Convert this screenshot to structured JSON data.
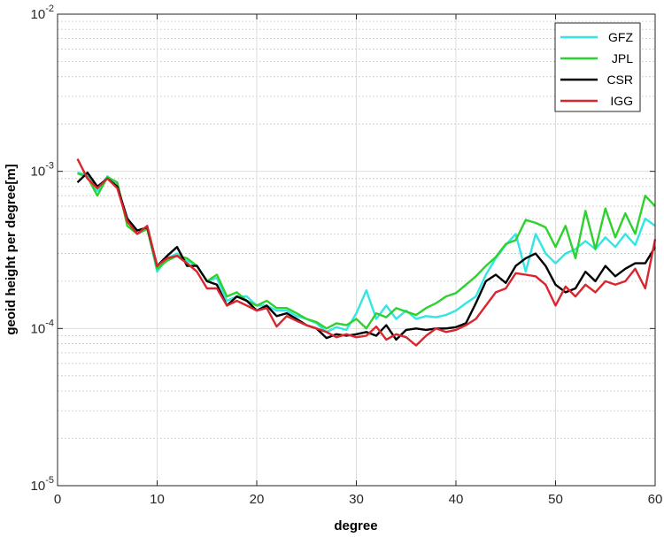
{
  "chart_data": {
    "type": "line",
    "title": "",
    "xlabel": "degree",
    "ylabel": "geoid height per degree[m]",
    "xlim": [
      0,
      60
    ],
    "ylim": [
      1e-05,
      0.01
    ],
    "yscale": "log",
    "grid": true,
    "minor_grid": true,
    "legend_position": "top-right",
    "x_ticks": [
      0,
      10,
      20,
      30,
      40,
      50,
      60
    ],
    "x_tick_labels": [
      "0",
      "10",
      "20",
      "30",
      "40",
      "50",
      "60"
    ],
    "y_ticks": [
      1e-05,
      0.0001,
      0.001,
      0.01
    ],
    "y_tick_labels": [
      {
        "base": "10",
        "exp": "-5"
      },
      {
        "base": "10",
        "exp": "-4"
      },
      {
        "base": "10",
        "exp": "-3"
      },
      {
        "base": "10",
        "exp": "-2"
      }
    ],
    "x": [
      2,
      3,
      4,
      5,
      6,
      7,
      8,
      9,
      10,
      11,
      12,
      13,
      14,
      15,
      16,
      17,
      18,
      19,
      20,
      21,
      22,
      23,
      24,
      25,
      26,
      27,
      28,
      29,
      30,
      31,
      32,
      33,
      34,
      35,
      36,
      37,
      38,
      39,
      40,
      41,
      42,
      43,
      44,
      45,
      46,
      47,
      48,
      49,
      50,
      51,
      52,
      53,
      54,
      55,
      56,
      57,
      58,
      59,
      60
    ],
    "series": [
      {
        "name": "GFZ",
        "color": "#33e6e6",
        "values": [
          0.00098,
          0.00095,
          0.00075,
          0.00093,
          0.00082,
          0.00048,
          0.00042,
          0.00044,
          0.00023,
          0.00028,
          0.0003,
          0.00027,
          0.00025,
          0.0002,
          0.00021,
          0.00015,
          0.00016,
          0.00016,
          0.00014,
          0.00014,
          0.00013,
          0.00013,
          0.00012,
          0.000115,
          0.000108,
          9.5e-05,
          0.000102,
          9.8e-05,
          0.000125,
          0.000175,
          0.000115,
          0.00014,
          0.000115,
          0.00013,
          0.000115,
          0.00012,
          0.000118,
          0.000122,
          0.00013,
          0.000145,
          0.00016,
          0.00022,
          0.00028,
          0.00034,
          0.0004,
          0.00023,
          0.0004,
          0.0003,
          0.00026,
          0.0003,
          0.00032,
          0.00036,
          0.00032,
          0.00038,
          0.00033,
          0.0004,
          0.00034,
          0.0005,
          0.00045
        ]
      },
      {
        "name": "JPL",
        "color": "#2ed12e",
        "values": [
          0.00097,
          0.00092,
          0.0007,
          0.00092,
          0.00085,
          0.00045,
          0.0004,
          0.00043,
          0.00024,
          0.00027,
          0.00029,
          0.00028,
          0.00025,
          0.0002,
          0.00022,
          0.00016,
          0.00017,
          0.00015,
          0.00014,
          0.00015,
          0.000135,
          0.000135,
          0.000125,
          0.000115,
          0.00011,
          0.0001,
          0.000108,
          0.000105,
          0.000115,
          0.0001,
          0.000125,
          0.000118,
          0.000135,
          0.000128,
          0.000122,
          0.000135,
          0.000145,
          0.00016,
          0.000168,
          0.00019,
          0.000215,
          0.00025,
          0.000285,
          0.000345,
          0.000365,
          0.00049,
          0.00047,
          0.00044,
          0.00033,
          0.00045,
          0.00028,
          0.00056,
          0.00032,
          0.00058,
          0.00038,
          0.00054,
          0.0004,
          0.0007,
          0.0006
        ]
      },
      {
        "name": "CSR",
        "color": "#000000",
        "values": [
          0.00085,
          0.00098,
          0.0008,
          0.0009,
          0.0008,
          0.0005,
          0.00042,
          0.00044,
          0.00025,
          0.00029,
          0.00033,
          0.00025,
          0.00025,
          0.0002,
          0.00019,
          0.00014,
          0.00016,
          0.00015,
          0.00013,
          0.00014,
          0.00012,
          0.000125,
          0.000115,
          0.000105,
          0.0001,
          8.7e-05,
          9.2e-05,
          9e-05,
          9.2e-05,
          9.5e-05,
          9e-05,
          0.000105,
          8.5e-05,
          9.8e-05,
          0.0001,
          9.8e-05,
          0.0001,
          0.0001,
          0.000102,
          0.000108,
          0.000145,
          0.0002,
          0.00022,
          0.000195,
          0.00025,
          0.00028,
          0.0003,
          0.00025,
          0.00019,
          0.00017,
          0.00018,
          0.00023,
          0.0002,
          0.00025,
          0.000215,
          0.00024,
          0.00026,
          0.00026,
          0.00033
        ]
      },
      {
        "name": "IGG",
        "color": "#d9262e",
        "values": [
          0.0012,
          0.0009,
          0.00078,
          0.0009,
          0.00078,
          0.00048,
          0.0004,
          0.00045,
          0.00025,
          0.00028,
          0.00029,
          0.00026,
          0.00023,
          0.00018,
          0.00018,
          0.00014,
          0.00015,
          0.00014,
          0.00013,
          0.000135,
          0.000103,
          0.00012,
          0.000112,
          0.000105,
          0.0001,
          9.5e-05,
          8.8e-05,
          9.2e-05,
          8.8e-05,
          9e-05,
          0.000103,
          8.5e-05,
          9.2e-05,
          8.8e-05,
          7.8e-05,
          9e-05,
          0.0001,
          9.5e-05,
          9.8e-05,
          0.000105,
          0.000115,
          0.00014,
          0.00017,
          0.00018,
          0.000225,
          0.00022,
          0.000215,
          0.00019,
          0.00014,
          0.000185,
          0.00016,
          0.00019,
          0.00017,
          0.0002,
          0.00019,
          0.0002,
          0.00024,
          0.00018,
          0.00037
        ]
      }
    ]
  }
}
